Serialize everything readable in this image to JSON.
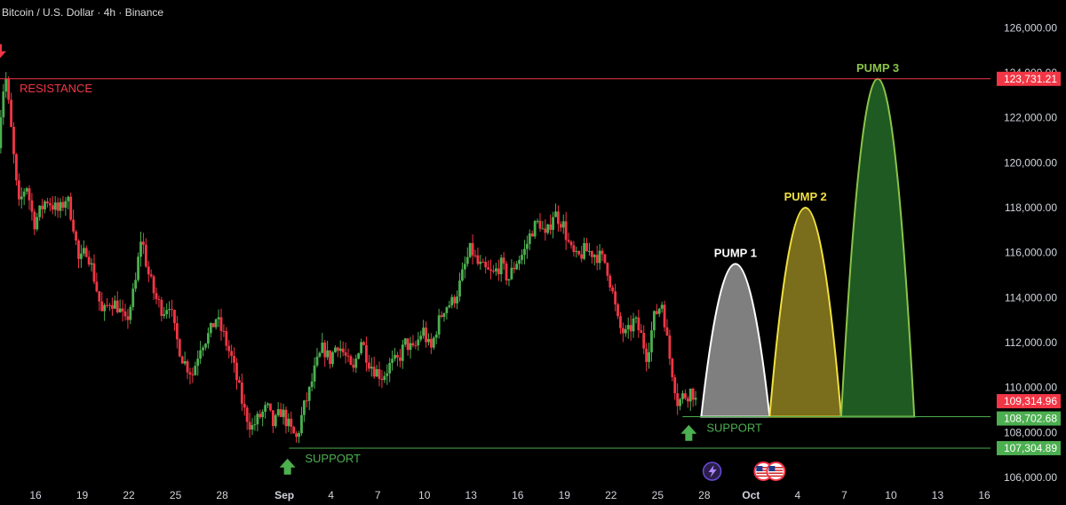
{
  "symbol_title": "Bitcoin / U.S. Dollar · 4h · Binance",
  "colors": {
    "background": "#000000",
    "resistance": "#f23645",
    "support": "#4caf50",
    "candle_up": "#4caf50",
    "candle_down": "#f23645",
    "pump1_fill": "#7f7f7f",
    "pump1_stroke": "#ffffff",
    "pump2_fill": "#7a6d1b",
    "pump2_stroke": "#f0e040",
    "pump3_fill": "#1f5a22",
    "pump3_stroke": "#8bc34a",
    "current_price_tag": "#f23645",
    "support_tag": "#4caf50"
  },
  "chart_data": {
    "type": "candlestick",
    "title": "Bitcoin / U.S. Dollar · 4h · Binance",
    "ylim": [
      105500,
      126800
    ],
    "y_ticks": [
      106000,
      108000,
      110000,
      112000,
      114000,
      116000,
      118000,
      120000,
      122000,
      124000,
      126000
    ],
    "y_tick_labels": [
      "106,000.00",
      "108,000.00",
      "110,000.00",
      "112,000.00",
      "114,000.00",
      "116,000.00",
      "118,000.00",
      "120,000.00",
      "122,000.00",
      "124,000.00",
      "126,000.00"
    ],
    "x_ticks": [
      {
        "label": "16",
        "day": 16,
        "bold": false
      },
      {
        "label": "19",
        "day": 19,
        "bold": false
      },
      {
        "label": "22",
        "day": 22,
        "bold": false
      },
      {
        "label": "25",
        "day": 25,
        "bold": false
      },
      {
        "label": "28",
        "day": 28,
        "bold": false
      },
      {
        "label": "Sep",
        "day": 32,
        "bold": true
      },
      {
        "label": "4",
        "day": 35,
        "bold": false
      },
      {
        "label": "7",
        "day": 38,
        "bold": false
      },
      {
        "label": "10",
        "day": 41,
        "bold": false
      },
      {
        "label": "13",
        "day": 44,
        "bold": false
      },
      {
        "label": "16",
        "day": 47,
        "bold": false
      },
      {
        "label": "19",
        "day": 50,
        "bold": false
      },
      {
        "label": "22",
        "day": 53,
        "bold": false
      },
      {
        "label": "25",
        "day": 56,
        "bold": false
      },
      {
        "label": "28",
        "day": 59,
        "bold": false
      },
      {
        "label": "Oct",
        "day": 62,
        "bold": true
      },
      {
        "label": "4",
        "day": 65,
        "bold": false
      },
      {
        "label": "7",
        "day": 68,
        "bold": false
      },
      {
        "label": "10",
        "day": 71,
        "bold": false
      },
      {
        "label": "13",
        "day": 74,
        "bold": false
      },
      {
        "label": "16",
        "day": 77,
        "bold": false
      }
    ],
    "price_path": [
      [
        13.6,
        121000
      ],
      [
        13.9,
        123200
      ],
      [
        14.1,
        123700
      ],
      [
        14.5,
        121000
      ],
      [
        14.9,
        118000
      ],
      [
        15.4,
        119100
      ],
      [
        15.9,
        117300
      ],
      [
        16.7,
        118400
      ],
      [
        17.5,
        117800
      ],
      [
        18.0,
        118500
      ],
      [
        18.4,
        117400
      ],
      [
        18.8,
        115500
      ],
      [
        19.3,
        116200
      ],
      [
        19.8,
        114800
      ],
      [
        20.3,
        113200
      ],
      [
        20.8,
        113900
      ],
      [
        21.3,
        113600
      ],
      [
        21.8,
        112800
      ],
      [
        22.4,
        114500
      ],
      [
        22.8,
        116800
      ],
      [
        23.2,
        115200
      ],
      [
        23.7,
        114000
      ],
      [
        24.2,
        113400
      ],
      [
        24.6,
        113800
      ],
      [
        25.0,
        112300
      ],
      [
        25.5,
        111200
      ],
      [
        26.1,
        110600
      ],
      [
        26.6,
        111900
      ],
      [
        27.2,
        112400
      ],
      [
        27.6,
        113100
      ],
      [
        28.1,
        112300
      ],
      [
        28.6,
        111300
      ],
      [
        29.0,
        110200
      ],
      [
        29.4,
        109000
      ],
      [
        29.9,
        108200
      ],
      [
        30.4,
        108700
      ],
      [
        30.9,
        109100
      ],
      [
        31.3,
        108300
      ],
      [
        31.8,
        109000
      ],
      [
        32.4,
        108100
      ],
      [
        32.8,
        107700
      ],
      [
        33.2,
        109000
      ],
      [
        33.6,
        109800
      ],
      [
        34.0,
        110900
      ],
      [
        34.5,
        111800
      ],
      [
        34.9,
        111200
      ],
      [
        35.4,
        112000
      ],
      [
        35.9,
        111400
      ],
      [
        36.4,
        110600
      ],
      [
        36.9,
        112200
      ],
      [
        37.4,
        111200
      ],
      [
        37.8,
        110800
      ],
      [
        38.3,
        110500
      ],
      [
        38.8,
        111000
      ],
      [
        39.3,
        111200
      ],
      [
        39.8,
        112000
      ],
      [
        40.3,
        111600
      ],
      [
        40.9,
        112600
      ],
      [
        41.4,
        111600
      ],
      [
        41.8,
        112700
      ],
      [
        42.3,
        113600
      ],
      [
        42.8,
        113800
      ],
      [
        43.2,
        114400
      ],
      [
        43.6,
        115400
      ],
      [
        44.0,
        116200
      ],
      [
        44.4,
        115500
      ],
      [
        44.9,
        115200
      ],
      [
        45.4,
        115000
      ],
      [
        45.9,
        115500
      ],
      [
        46.4,
        114800
      ],
      [
        46.9,
        115600
      ],
      [
        47.4,
        116000
      ],
      [
        47.9,
        117000
      ],
      [
        48.4,
        117400
      ],
      [
        48.8,
        116600
      ],
      [
        49.3,
        117800
      ],
      [
        49.9,
        117300
      ],
      [
        50.4,
        116100
      ],
      [
        50.8,
        115700
      ],
      [
        51.3,
        116100
      ],
      [
        51.8,
        116000
      ],
      [
        52.3,
        115800
      ],
      [
        52.7,
        115500
      ],
      [
        53.1,
        114200
      ],
      [
        53.5,
        112700
      ],
      [
        54.0,
        112300
      ],
      [
        54.5,
        113000
      ],
      [
        54.9,
        112400
      ],
      [
        55.3,
        111400
      ],
      [
        55.8,
        113200
      ],
      [
        56.3,
        113800
      ],
      [
        56.7,
        111600
      ],
      [
        57.0,
        110500
      ],
      [
        57.3,
        109300
      ],
      [
        57.6,
        109600
      ],
      [
        57.9,
        109700
      ],
      [
        58.2,
        109900
      ],
      [
        58.5,
        109300
      ]
    ],
    "levels": [
      {
        "name": "resistance",
        "label": "RESISTANCE",
        "price": 123731.21,
        "price_label": "123,731.21"
      },
      {
        "name": "support",
        "label": "SUPPORT",
        "price": 107304.89,
        "price_label": "107,304.89"
      },
      {
        "name": "support-upper",
        "label": "SUPPORT",
        "price": 108702.68,
        "price_label": "108,702.68"
      }
    ],
    "current_price": {
      "price": 109314.96,
      "label": "109,314.96"
    },
    "projections": [
      {
        "label": "PUMP 1",
        "start_day": 58.8,
        "end_day": 63.2,
        "base": 108702.68,
        "peak": 115500
      },
      {
        "label": "PUMP 2",
        "start_day": 63.2,
        "end_day": 67.8,
        "base": 108702.68,
        "peak": 118000
      },
      {
        "label": "PUMP 3",
        "start_day": 67.8,
        "end_day": 72.5,
        "base": 108702.68,
        "peak": 123731.21
      }
    ],
    "arrows": [
      {
        "name": "resistance-down-arrow-icon",
        "day": 13.6,
        "price": 124800,
        "direction": "down",
        "color": "#f23645"
      },
      {
        "name": "support-up-arrow-icon",
        "day": 32.2,
        "price": 106600,
        "direction": "up",
        "color": "#4caf50"
      },
      {
        "name": "support-upper-up-arrow-icon",
        "day": 58.0,
        "price": 108100,
        "direction": "up",
        "color": "#4caf50"
      }
    ],
    "event_icons": [
      {
        "name": "crypto-event-icon",
        "day": 59.5
      },
      {
        "name": "us-flag-icon",
        "day": 62.8
      },
      {
        "name": "us-flag-icon-2",
        "day": 63.6
      }
    ]
  }
}
